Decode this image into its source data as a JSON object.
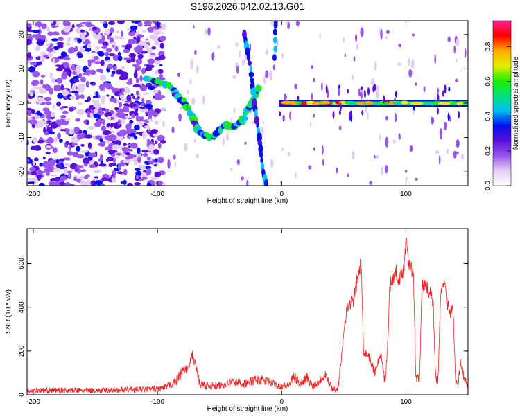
{
  "title": "S196.2026.042.02.13.G01",
  "chart_data": [
    {
      "type": "heatmap",
      "xlabel": "Height of straight line (km)",
      "ylabel": "Frequency (Hz)",
      "xlim": [
        -205,
        150
      ],
      "ylim": [
        -24,
        24
      ],
      "xticks": [
        -200,
        -100,
        0,
        100
      ],
      "yticks": [
        -20,
        -10,
        0,
        10,
        20
      ],
      "grid": false,
      "colorbar": {
        "label": "Normalized spectral amplitude",
        "range": [
          0,
          0.95
        ],
        "ticks": [
          0.0,
          0.2,
          0.4,
          0.6,
          0.8
        ],
        "tick_labels": [
          "0.0",
          "0.2",
          "0.4",
          "0.6",
          "0.8"
        ],
        "colors": [
          "#ffffff",
          "#e3cdf2",
          "#9955ee",
          "#5a10d9",
          "#0010f0",
          "#00c0f0",
          "#00e27a",
          "#20ee00",
          "#e8ee00",
          "#ffaa00",
          "#ff0000",
          "#ff2090"
        ]
      },
      "features": {
        "noise_region_x": [
          -205,
          -95
        ],
        "diagonal_track": [
          [
            -110,
            7
          ],
          [
            -95,
            6
          ],
          [
            -85,
            3
          ],
          [
            -78,
            0
          ],
          [
            -72,
            -4
          ],
          [
            -65,
            -9
          ],
          [
            -55,
            -10
          ],
          [
            -45,
            -6
          ],
          [
            -38,
            -7
          ],
          [
            -30,
            -4
          ],
          [
            -22,
            2
          ],
          [
            -18,
            5
          ]
        ],
        "steep_track": [
          [
            -30,
            20
          ],
          [
            -25,
            10
          ],
          [
            -22,
            0
          ],
          [
            -18,
            -10
          ],
          [
            -15,
            -20
          ],
          [
            -12,
            -24
          ]
        ],
        "signal_line": {
          "x_start": -2,
          "x_end": 150,
          "frequency": 0
        },
        "early_streak": {
          "x": -5,
          "y_range": [
            12,
            24
          ]
        }
      }
    },
    {
      "type": "line",
      "xlabel": "Height of straight line (km)",
      "ylabel": "SNR (10 * v/v)",
      "xlim": [
        -205,
        150
      ],
      "ylim": [
        0,
        760
      ],
      "xticks": [
        -200,
        -100,
        0,
        100
      ],
      "yticks": [
        0,
        200,
        400,
        600
      ],
      "grid": false,
      "color": "#ee2222",
      "anchors": [
        [
          -205,
          20
        ],
        [
          -150,
          20
        ],
        [
          -110,
          25
        ],
        [
          -95,
          30
        ],
        [
          -85,
          60
        ],
        [
          -80,
          110
        ],
        [
          -75,
          120
        ],
        [
          -72,
          180
        ],
        [
          -69,
          130
        ],
        [
          -66,
          50
        ],
        [
          -60,
          40
        ],
        [
          -50,
          40
        ],
        [
          -40,
          60
        ],
        [
          -30,
          50
        ],
        [
          -20,
          70
        ],
        [
          -10,
          60
        ],
        [
          -2,
          40
        ],
        [
          5,
          40
        ],
        [
          10,
          80
        ],
        [
          15,
          50
        ],
        [
          20,
          80
        ],
        [
          25,
          40
        ],
        [
          30,
          60
        ],
        [
          35,
          100
        ],
        [
          40,
          30
        ],
        [
          45,
          25
        ],
        [
          48,
          150
        ],
        [
          50,
          300
        ],
        [
          52,
          380
        ],
        [
          55,
          420
        ],
        [
          58,
          430
        ],
        [
          60,
          500
        ],
        [
          62,
          560
        ],
        [
          64,
          600
        ],
        [
          66,
          200
        ],
        [
          70,
          180
        ],
        [
          75,
          100
        ],
        [
          78,
          160
        ],
        [
          80,
          180
        ],
        [
          83,
          60
        ],
        [
          85,
          180
        ],
        [
          87,
          500
        ],
        [
          90,
          540
        ],
        [
          92,
          560
        ],
        [
          95,
          520
        ],
        [
          97,
          560
        ],
        [
          99,
          600
        ],
        [
          100,
          740
        ],
        [
          102,
          620
        ],
        [
          104,
          580
        ],
        [
          106,
          560
        ],
        [
          108,
          80
        ],
        [
          111,
          80
        ],
        [
          113,
          500
        ],
        [
          116,
          510
        ],
        [
          118,
          470
        ],
        [
          120,
          460
        ],
        [
          122,
          420
        ],
        [
          124,
          70
        ],
        [
          126,
          70
        ],
        [
          128,
          480
        ],
        [
          131,
          500
        ],
        [
          134,
          400
        ],
        [
          136,
          380
        ],
        [
          138,
          400
        ],
        [
          140,
          60
        ],
        [
          142,
          40
        ],
        [
          144,
          150
        ],
        [
          147,
          80
        ],
        [
          150,
          40
        ]
      ]
    }
  ]
}
